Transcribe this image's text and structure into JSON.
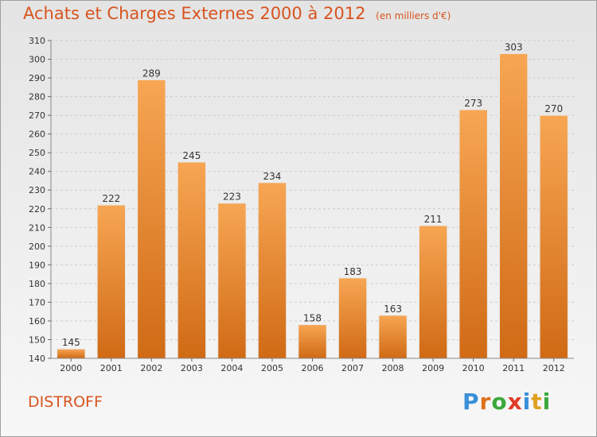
{
  "header": {
    "title": "Achats et Charges Externes 2000 à 2012",
    "unit": "(en milliers d'€)"
  },
  "footer": {
    "commune": "DISTROFF",
    "logo": [
      "P",
      "r",
      "o",
      "x",
      "i",
      "t",
      "i"
    ],
    "logo_colors": [
      "#3a8fd8",
      "#e0701a",
      "#3aa83a",
      "#e03a2a",
      "#3a8fd8",
      "#e0a020",
      "#3aa83a"
    ]
  },
  "colors": {
    "bar_top": "#f7a653",
    "bar_bottom": "#d06a15",
    "title": "#d8541f",
    "grid": "#cccccc"
  },
  "chart_data": {
    "type": "bar",
    "categories": [
      "2000",
      "2001",
      "2002",
      "2003",
      "2004",
      "2005",
      "2006",
      "2007",
      "2008",
      "2009",
      "2010",
      "2011",
      "2012"
    ],
    "values": [
      145,
      222,
      289,
      245,
      223,
      234,
      158,
      183,
      163,
      211,
      273,
      303,
      270
    ],
    "ylim": [
      140,
      310
    ],
    "yticks": [
      140,
      150,
      160,
      170,
      180,
      190,
      200,
      210,
      220,
      230,
      240,
      250,
      260,
      270,
      280,
      290,
      300,
      310
    ],
    "grid": true,
    "title": "Achats et Charges Externes 2000 à 2012",
    "xlabel": "",
    "ylabel": ""
  }
}
